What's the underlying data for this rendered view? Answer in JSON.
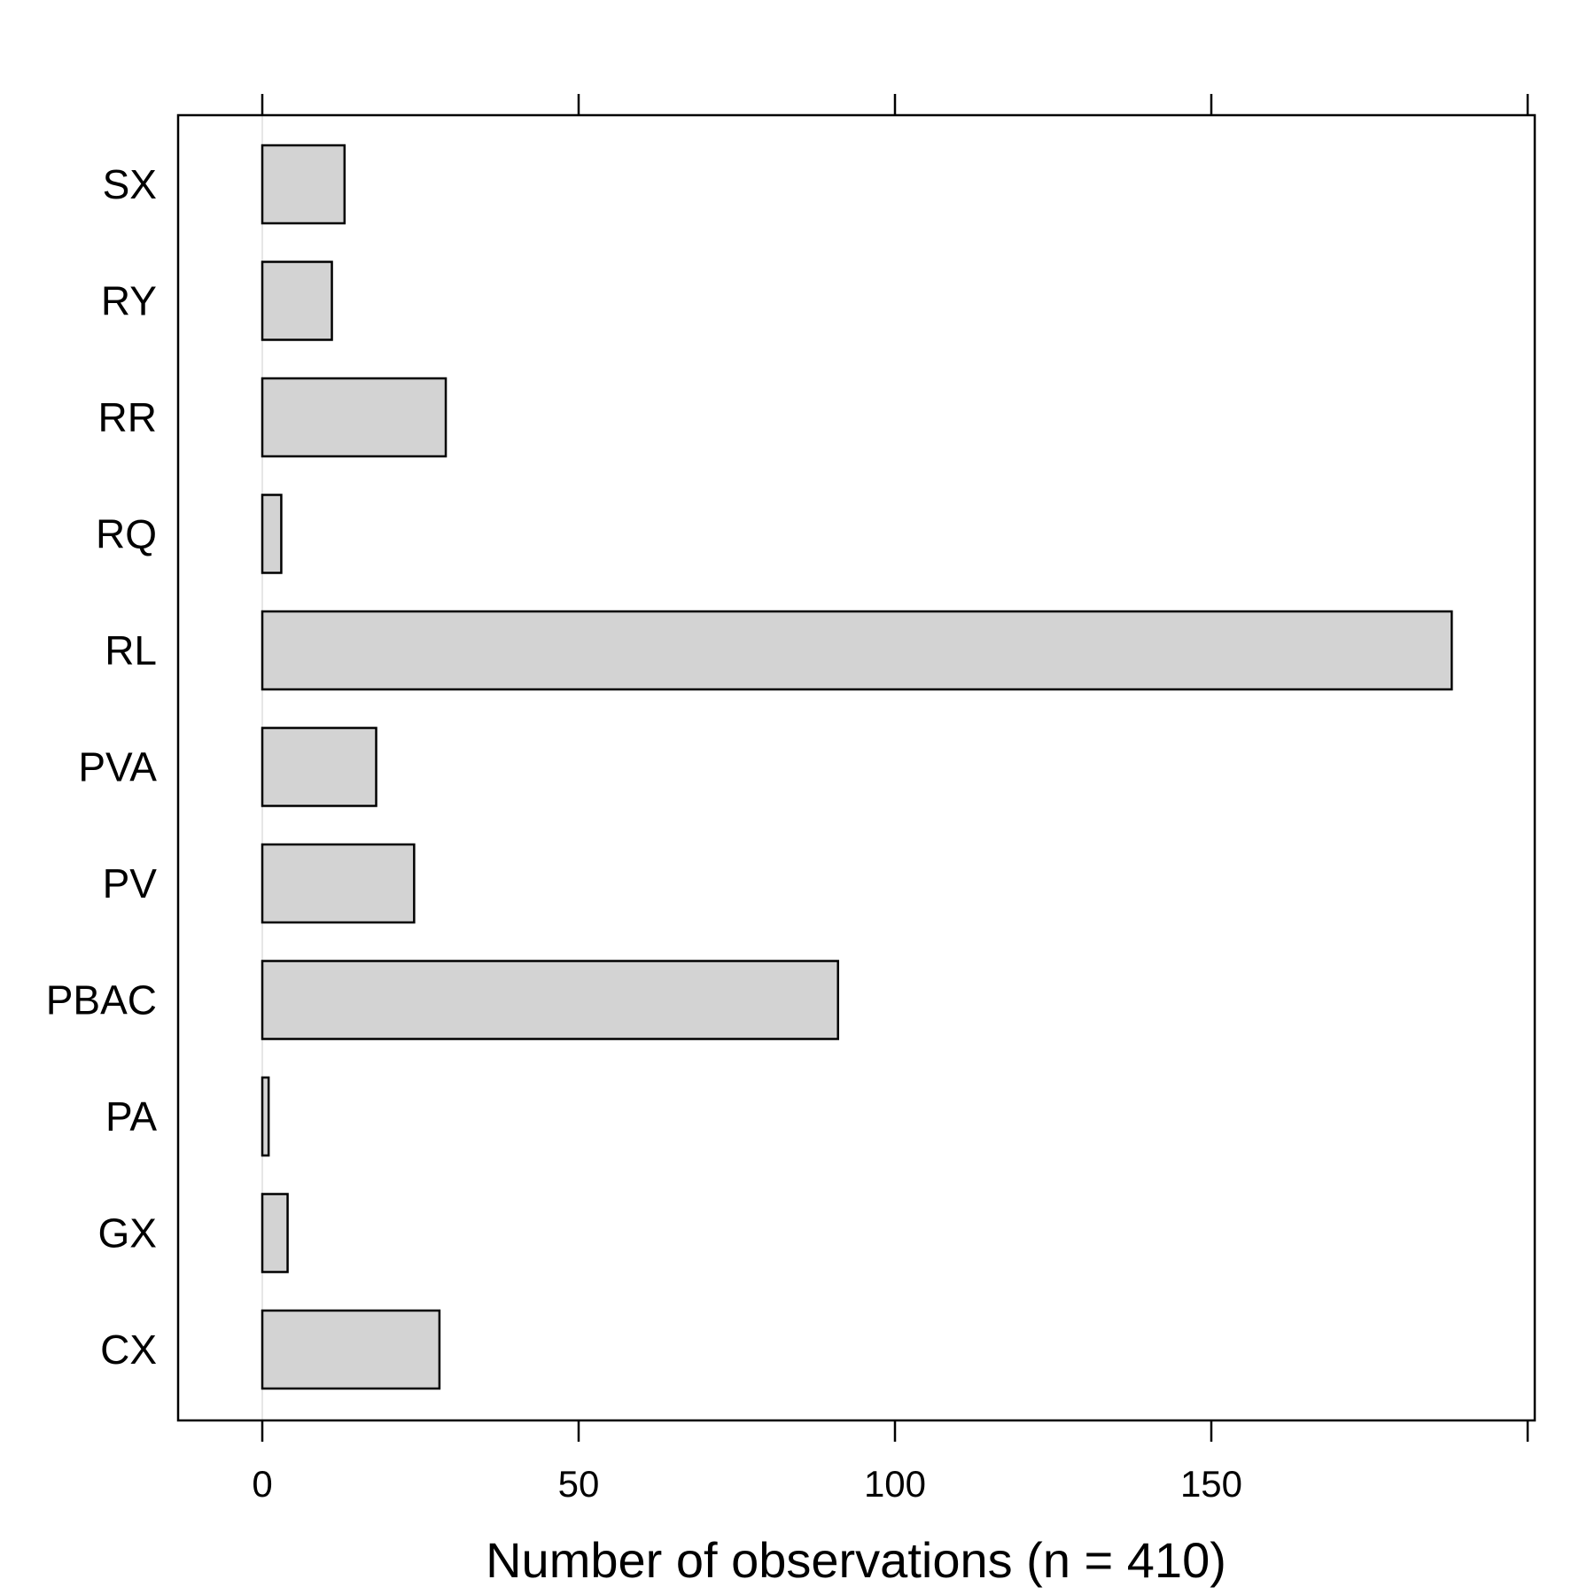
{
  "chart_data": {
    "type": "bar",
    "orientation": "horizontal",
    "categories": [
      "CX",
      "GX",
      "PA",
      "PBAC",
      "PV",
      "PVA",
      "RL",
      "RQ",
      "RR",
      "RY",
      "SX"
    ],
    "values": [
      28,
      4,
      1,
      91,
      24,
      18,
      188,
      3,
      29,
      11,
      13
    ],
    "xlabel": "Number of observations (n = 410)",
    "ylabel": "",
    "xlim": [
      -13,
      202
    ],
    "xticks": [
      0,
      50,
      100,
      150,
      200
    ],
    "xtick_labels": [
      "0",
      "50",
      "100",
      "150",
      ""
    ],
    "grid": false,
    "reference_line_at": 0,
    "colors": {
      "bar_fill": "#d3d3d3",
      "bar_stroke": "#000000",
      "reference_line": "#e6e6e6",
      "frame": "#000000"
    }
  }
}
